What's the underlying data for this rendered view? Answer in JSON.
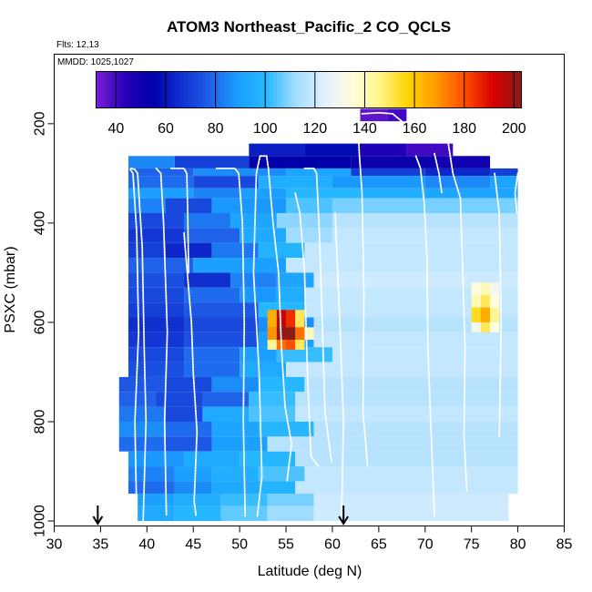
{
  "chart_data": {
    "type": "heatmap",
    "title": "ATOM3 Northeast_Pacific_2 CO_QCLS",
    "flights_label": "Flts: 12,13",
    "date_label": "MMDD: 1025,1027",
    "xlabel": "Latitude (deg N)",
    "ylabel": "PSXC (mbar)",
    "xlim": [
      30,
      85
    ],
    "ylim": [
      1010,
      60
    ],
    "x_ticks": [
      "30",
      "35",
      "40",
      "45",
      "50",
      "55",
      "60",
      "65",
      "70",
      "75",
      "80",
      "85"
    ],
    "y_ticks": [
      "200",
      "400",
      "600",
      "800",
      "1000"
    ],
    "colorbar": {
      "range": [
        32,
        203
      ],
      "ticks": [
        "40",
        "60",
        "80",
        "100",
        "120",
        "140",
        "160",
        "180",
        "200"
      ],
      "colors": [
        "#7a1fd6",
        "#2900b8",
        "#0000a8",
        "#1030d0",
        "#1f5fe8",
        "#1a9eff",
        "#26b8ff",
        "#9fdcff",
        "#dff0ff",
        "#fffde0",
        "#fff48a",
        "#ffd400",
        "#ff9a00",
        "#ff4d00",
        "#d80000",
        "#8b1a1a"
      ]
    },
    "arrows_latitude": [
      34.7,
      61.2
    ],
    "cells": [
      [
        63,
        66,
        170,
        195,
        36
      ],
      [
        66,
        68,
        170,
        195,
        40
      ],
      [
        51,
        57,
        240,
        265,
        62
      ],
      [
        57,
        63,
        240,
        265,
        58
      ],
      [
        63,
        68,
        240,
        265,
        46
      ],
      [
        68,
        73,
        240,
        265,
        40
      ],
      [
        38,
        43,
        265,
        290,
        85
      ],
      [
        43,
        51,
        265,
        290,
        70
      ],
      [
        51,
        62,
        265,
        290,
        55
      ],
      [
        62,
        71,
        265,
        290,
        52
      ],
      [
        71,
        77,
        265,
        290,
        50
      ],
      [
        38,
        45,
        290,
        305,
        78
      ],
      [
        45,
        55,
        290,
        305,
        86
      ],
      [
        55,
        62,
        290,
        305,
        92
      ],
      [
        62,
        70,
        290,
        305,
        70
      ],
      [
        70,
        77,
        290,
        305,
        64
      ],
      [
        77,
        80,
        290,
        305,
        70
      ],
      [
        38,
        45,
        305,
        330,
        80
      ],
      [
        45,
        52,
        305,
        330,
        72
      ],
      [
        52,
        60,
        305,
        330,
        96
      ],
      [
        60,
        70,
        305,
        330,
        88
      ],
      [
        70,
        77,
        305,
        330,
        85
      ],
      [
        77,
        80,
        305,
        330,
        92
      ],
      [
        38,
        45,
        330,
        350,
        90
      ],
      [
        45,
        50,
        330,
        350,
        84
      ],
      [
        50,
        55,
        330,
        350,
        90
      ],
      [
        55,
        63,
        330,
        350,
        100
      ],
      [
        63,
        70,
        330,
        350,
        96
      ],
      [
        70,
        80,
        330,
        350,
        92
      ],
      [
        38,
        42,
        350,
        380,
        84
      ],
      [
        42,
        47,
        350,
        380,
        72
      ],
      [
        47,
        55,
        350,
        380,
        88
      ],
      [
        55,
        60,
        350,
        380,
        104
      ],
      [
        60,
        80,
        350,
        380,
        108
      ],
      [
        38,
        44,
        380,
        410,
        72
      ],
      [
        44,
        49,
        380,
        410,
        82
      ],
      [
        49,
        54,
        380,
        410,
        92
      ],
      [
        54,
        60,
        380,
        410,
        110
      ],
      [
        60,
        80,
        380,
        410,
        116
      ],
      [
        38,
        44,
        410,
        440,
        68
      ],
      [
        44,
        50,
        410,
        440,
        78
      ],
      [
        50,
        55,
        410,
        440,
        94
      ],
      [
        55,
        60,
        410,
        440,
        112
      ],
      [
        60,
        80,
        410,
        440,
        118
      ],
      [
        38,
        42,
        440,
        470,
        70
      ],
      [
        42,
        47,
        440,
        470,
        64
      ],
      [
        47,
        52,
        440,
        470,
        82
      ],
      [
        52,
        57,
        440,
        470,
        98
      ],
      [
        57,
        80,
        440,
        470,
        118
      ],
      [
        38,
        45,
        470,
        500,
        78
      ],
      [
        45,
        55,
        470,
        500,
        90
      ],
      [
        55,
        80,
        470,
        500,
        118
      ],
      [
        38,
        44,
        500,
        530,
        74
      ],
      [
        44,
        49,
        500,
        530,
        66
      ],
      [
        49,
        54,
        500,
        530,
        84
      ],
      [
        54,
        58,
        500,
        530,
        92
      ],
      [
        58,
        80,
        500,
        530,
        120
      ],
      [
        38,
        44,
        530,
        560,
        72
      ],
      [
        44,
        50,
        530,
        560,
        80
      ],
      [
        50,
        54,
        530,
        560,
        88
      ],
      [
        54,
        57,
        530,
        560,
        96
      ],
      [
        57,
        80,
        530,
        560,
        118
      ],
      [
        38,
        44,
        560,
        590,
        70
      ],
      [
        44,
        52,
        560,
        590,
        76
      ],
      [
        52,
        57,
        560,
        590,
        100
      ],
      [
        57,
        80,
        560,
        590,
        118
      ],
      [
        38,
        44,
        590,
        620,
        66
      ],
      [
        44,
        52,
        590,
        620,
        72
      ],
      [
        52,
        58,
        590,
        620,
        86
      ],
      [
        58,
        80,
        590,
        620,
        116
      ],
      [
        38,
        44,
        620,
        650,
        68
      ],
      [
        44,
        52,
        620,
        650,
        74
      ],
      [
        52,
        58,
        620,
        650,
        90
      ],
      [
        58,
        80,
        620,
        650,
        118
      ],
      [
        38,
        44,
        650,
        680,
        72
      ],
      [
        44,
        50,
        650,
        680,
        80
      ],
      [
        50,
        54,
        650,
        680,
        90
      ],
      [
        54,
        60,
        650,
        680,
        102
      ],
      [
        60,
        80,
        650,
        680,
        118
      ],
      [
        38,
        44,
        680,
        710,
        74
      ],
      [
        44,
        50,
        680,
        710,
        80
      ],
      [
        50,
        55,
        680,
        710,
        94
      ],
      [
        55,
        80,
        680,
        710,
        118
      ],
      [
        37,
        42,
        710,
        740,
        76
      ],
      [
        42,
        47,
        710,
        740,
        72
      ],
      [
        47,
        52,
        710,
        740,
        86
      ],
      [
        52,
        57,
        710,
        740,
        100
      ],
      [
        57,
        80,
        710,
        740,
        116
      ],
      [
        37,
        41,
        740,
        770,
        78
      ],
      [
        41,
        46,
        740,
        770,
        72
      ],
      [
        46,
        51,
        740,
        770,
        78
      ],
      [
        51,
        56,
        740,
        770,
        102
      ],
      [
        56,
        80,
        740,
        770,
        116
      ],
      [
        37,
        42,
        770,
        800,
        82
      ],
      [
        42,
        46,
        770,
        800,
        72
      ],
      [
        46,
        51,
        770,
        800,
        94
      ],
      [
        51,
        56,
        770,
        800,
        104
      ],
      [
        56,
        80,
        770,
        800,
        118
      ],
      [
        37,
        42,
        800,
        830,
        86
      ],
      [
        42,
        47,
        800,
        830,
        80
      ],
      [
        47,
        52,
        800,
        830,
        92
      ],
      [
        52,
        58,
        800,
        830,
        100
      ],
      [
        58,
        80,
        800,
        830,
        116
      ],
      [
        37,
        42,
        830,
        860,
        80
      ],
      [
        42,
        47,
        830,
        860,
        76
      ],
      [
        47,
        53,
        830,
        860,
        90
      ],
      [
        53,
        80,
        830,
        860,
        116
      ],
      [
        38,
        44,
        860,
        890,
        88
      ],
      [
        44,
        50,
        860,
        890,
        94
      ],
      [
        50,
        56,
        860,
        890,
        100
      ],
      [
        56,
        80,
        860,
        890,
        116
      ],
      [
        38,
        43,
        890,
        920,
        84
      ],
      [
        43,
        47,
        890,
        920,
        90
      ],
      [
        47,
        52,
        890,
        920,
        96
      ],
      [
        52,
        57,
        890,
        920,
        104
      ],
      [
        57,
        80,
        890,
        920,
        118
      ],
      [
        38,
        43,
        920,
        945,
        80
      ],
      [
        43,
        47,
        920,
        945,
        86
      ],
      [
        47,
        52,
        920,
        945,
        94
      ],
      [
        52,
        56,
        920,
        945,
        98
      ],
      [
        56,
        80,
        920,
        945,
        118
      ],
      [
        39,
        43,
        945,
        970,
        90
      ],
      [
        43,
        48,
        945,
        970,
        96
      ],
      [
        48,
        53,
        945,
        970,
        102
      ],
      [
        53,
        58,
        945,
        970,
        108
      ],
      [
        58,
        79,
        945,
        970,
        120
      ],
      [
        39,
        43,
        970,
        1000,
        94
      ],
      [
        43,
        48,
        970,
        1000,
        100
      ],
      [
        48,
        53,
        970,
        1000,
        106
      ],
      [
        53,
        58,
        970,
        1000,
        112
      ],
      [
        58,
        79,
        970,
        1000,
        120
      ],
      [
        53,
        54,
        575,
        610,
        165
      ],
      [
        54,
        55,
        575,
        610,
        195
      ],
      [
        55,
        56,
        575,
        610,
        185
      ],
      [
        56,
        57,
        575,
        610,
        150
      ],
      [
        53,
        54,
        610,
        635,
        170
      ],
      [
        54,
        55,
        610,
        635,
        200
      ],
      [
        55,
        56,
        610,
        635,
        203
      ],
      [
        56,
        57,
        610,
        635,
        175
      ],
      [
        57,
        58,
        610,
        635,
        140
      ],
      [
        53,
        54,
        635,
        655,
        145
      ],
      [
        54,
        55,
        635,
        655,
        175
      ],
      [
        55,
        56,
        635,
        655,
        180
      ],
      [
        56,
        57,
        635,
        655,
        150
      ],
      [
        75,
        76,
        520,
        545,
        135
      ],
      [
        76,
        77,
        520,
        545,
        140
      ],
      [
        77,
        78,
        520,
        545,
        130
      ],
      [
        75,
        76,
        545,
        570,
        140
      ],
      [
        76,
        77,
        545,
        570,
        150
      ],
      [
        77,
        78,
        545,
        570,
        135
      ],
      [
        75,
        76,
        570,
        600,
        155
      ],
      [
        76,
        77,
        570,
        600,
        165
      ],
      [
        77,
        78,
        570,
        600,
        145
      ],
      [
        75,
        76,
        600,
        620,
        130
      ],
      [
        76,
        77,
        600,
        620,
        150
      ],
      [
        77,
        78,
        600,
        620,
        135
      ]
    ],
    "flight_tracks": [
      [
        [
          38.3,
          290
        ],
        [
          38.7,
          292
        ],
        [
          39.0,
          300
        ],
        [
          39.5,
          450
        ],
        [
          39.7,
          650
        ],
        [
          39.9,
          800
        ],
        [
          39.6,
          1000
        ]
      ],
      [
        [
          38.2,
          292
        ],
        [
          38.5,
          300
        ],
        [
          38.9,
          420
        ],
        [
          39.1,
          620
        ],
        [
          38.7,
          800
        ],
        [
          38.9,
          990
        ]
      ],
      [
        [
          41.0,
          290
        ],
        [
          41.5,
          300
        ],
        [
          41.8,
          400
        ],
        [
          42.2,
          620
        ],
        [
          41.9,
          800
        ],
        [
          42.1,
          990
        ]
      ],
      [
        [
          42.6,
          290
        ],
        [
          44.0,
          290
        ],
        [
          44.3,
          300
        ],
        [
          44.4,
          380
        ],
        [
          44.5,
          500
        ]
      ],
      [
        [
          44.0,
          420
        ],
        [
          44.8,
          600
        ],
        [
          45.0,
          700
        ],
        [
          45.4,
          820
        ],
        [
          45.1,
          960
        ],
        [
          45.3,
          990
        ]
      ],
      [
        [
          47.5,
          290
        ],
        [
          49.5,
          290
        ],
        [
          49.9,
          300
        ],
        [
          50.3,
          400
        ],
        [
          50.5,
          600
        ],
        [
          50.4,
          800
        ],
        [
          50.6,
          990
        ]
      ],
      [
        [
          52.3,
          265
        ],
        [
          52.9,
          265
        ],
        [
          53.1,
          290
        ],
        [
          53.6,
          400
        ],
        [
          54.2,
          500
        ],
        [
          54.5,
          650
        ],
        [
          54.9,
          770
        ],
        [
          55.6,
          845
        ],
        [
          55.1,
          920
        ]
      ],
      [
        [
          52.2,
          265
        ],
        [
          51.8,
          300
        ],
        [
          51.5,
          500
        ],
        [
          52.1,
          700
        ],
        [
          52.4,
          910
        ],
        [
          51.9,
          990
        ]
      ],
      [
        [
          57.0,
          290
        ],
        [
          58.0,
          290
        ],
        [
          58.3,
          300
        ],
        [
          58.6,
          420
        ],
        [
          58.9,
          600
        ],
        [
          59.2,
          780
        ],
        [
          59.9,
          880
        ]
      ],
      [
        [
          56.0,
          340
        ],
        [
          56.5,
          380
        ],
        [
          57.0,
          500
        ],
        [
          57.3,
          700
        ],
        [
          57.7,
          870
        ],
        [
          58.5,
          890
        ]
      ],
      [
        [
          60.3,
          380
        ],
        [
          60.8,
          600
        ],
        [
          61.2,
          800
        ],
        [
          61.0,
          990
        ]
      ],
      [
        [
          63.2,
          180
        ],
        [
          65.0,
          178
        ],
        [
          66.5,
          180
        ],
        [
          67.8,
          200
        ],
        [
          68.2,
          210
        ]
      ],
      [
        [
          62.7,
          180
        ],
        [
          62.9,
          260
        ],
        [
          63.2,
          340
        ],
        [
          63.4,
          540
        ],
        [
          63.3,
          780
        ],
        [
          63.8,
          890
        ]
      ],
      [
        [
          69.0,
          265
        ],
        [
          69.5,
          290
        ],
        [
          69.9,
          360
        ],
        [
          70.2,
          470
        ],
        [
          70.3,
          650
        ],
        [
          70.6,
          800
        ],
        [
          71.0,
          990
        ]
      ],
      [
        [
          72.0,
          210
        ],
        [
          72.5,
          240
        ],
        [
          73.0,
          300
        ],
        [
          73.8,
          350
        ],
        [
          74.0,
          460
        ],
        [
          74.3,
          650
        ],
        [
          74.2,
          830
        ],
        [
          74.5,
          940
        ]
      ],
      [
        [
          71.0,
          260
        ],
        [
          71.5,
          300
        ],
        [
          71.8,
          340
        ]
      ],
      [
        [
          77.5,
          300
        ],
        [
          78.0,
          380
        ],
        [
          78.2,
          600
        ],
        [
          78.0,
          830
        ]
      ],
      [
        [
          80.0,
          300
        ],
        [
          79.7,
          340
        ],
        [
          79.9,
          380
        ]
      ]
    ]
  }
}
